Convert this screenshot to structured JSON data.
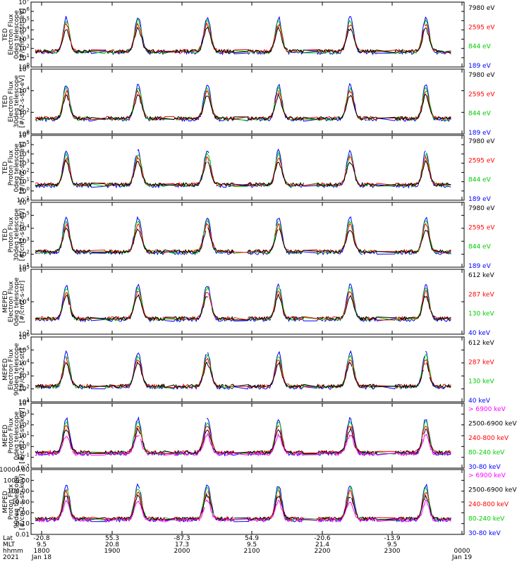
{
  "chart_data": [
    {
      "type": "line",
      "ylabel": [
        "TED",
        "Electron Flux",
        "0deg telescope",
        "[#/cm2-s-str-eV]"
      ],
      "ytick_labels": [
        "10^0",
        "10^1",
        "10^2",
        "10^3",
        "10^4",
        "10^5",
        "10^6",
        "10^7"
      ],
      "ylim_exp": [
        0,
        7
      ],
      "log_scale": true,
      "series": [
        {
          "name": "7980 eV",
          "color": "#000000"
        },
        {
          "name": "2595 eV",
          "color": "#ff0000"
        },
        {
          "name": "844 eV",
          "color": "#00cc00"
        },
        {
          "name": "189 eV",
          "color": "#0000ff"
        }
      ]
    },
    {
      "type": "line",
      "ylabel": [
        "TED",
        "Electron Flux",
        "30deg telescope",
        "[#/cm2-s-str-eV]"
      ],
      "ytick_labels": [
        "10^0",
        "10^2",
        "10^4",
        "10^6"
      ],
      "ylim_exp": [
        0,
        7
      ],
      "log_scale": true,
      "series": [
        {
          "name": "7980 eV",
          "color": "#000000"
        },
        {
          "name": "2595 eV",
          "color": "#ff0000"
        },
        {
          "name": "844 eV",
          "color": "#00cc00"
        },
        {
          "name": "189 eV",
          "color": "#0000ff"
        }
      ]
    },
    {
      "type": "line",
      "ylabel": [
        "TED",
        "Proton Flux",
        "0deg telescope",
        "[#/cm2-s-str-eV]"
      ],
      "ytick_labels": [
        "10^-1",
        "10^0",
        "10^1",
        "10^2",
        "10^3",
        "10^4",
        "10^5",
        "10^6"
      ],
      "ylim_exp": [
        -1,
        6
      ],
      "log_scale": true,
      "series": [
        {
          "name": "7980 eV",
          "color": "#000000"
        },
        {
          "name": "2595 eV",
          "color": "#ff0000"
        },
        {
          "name": "844 eV",
          "color": "#00cc00"
        },
        {
          "name": "189 eV",
          "color": "#0000ff"
        }
      ]
    },
    {
      "type": "line",
      "ylabel": [
        "TED",
        "Proton Flux",
        "30deg telescope",
        "[#/cm2-s-str-eV]"
      ],
      "ytick_labels": [
        "10^1",
        "10^2",
        "10^3",
        "10^4",
        "10^5",
        "10^6"
      ],
      "ylim_exp": [
        1,
        6
      ],
      "log_scale": true,
      "series": [
        {
          "name": "7980 eV",
          "color": "#000000"
        },
        {
          "name": "2595 eV",
          "color": "#ff0000"
        },
        {
          "name": "844 eV",
          "color": "#00cc00"
        },
        {
          "name": "189 eV",
          "color": "#0000ff"
        }
      ]
    },
    {
      "type": "line",
      "ylabel": [
        "MEPED",
        "Electron Flux",
        "0deg telescope",
        "[#/cm2-s-str]"
      ],
      "ytick_labels": [
        "10^2",
        "10^4",
        "10^5"
      ],
      "ylim_exp": [
        1,
        5
      ],
      "log_scale": true,
      "series": [
        {
          "name": "612 keV",
          "color": "#000000"
        },
        {
          "name": "287 keV",
          "color": "#ff0000"
        },
        {
          "name": "130 keV",
          "color": "#00cc00"
        },
        {
          "name": "40 keV",
          "color": "#0000ff"
        }
      ]
    },
    {
      "type": "line",
      "ylabel": [
        "MEPED",
        "Electron Flux",
        "90deg telescope",
        "[#/cm2-s-str]"
      ],
      "ytick_labels": [
        "10^1",
        "10^2",
        "10^3",
        "10^4",
        "10^5",
        "10^6"
      ],
      "ylim_exp": [
        1,
        6
      ],
      "log_scale": true,
      "series": [
        {
          "name": "612 keV",
          "color": "#000000"
        },
        {
          "name": "287 keV",
          "color": "#ff0000"
        },
        {
          "name": "130 keV",
          "color": "#00cc00"
        },
        {
          "name": "40 keV",
          "color": "#0000ff"
        }
      ]
    },
    {
      "type": "line",
      "ylabel": [
        "MEPED",
        "Proton Flux",
        "0deg telescope",
        "[#/cm2-s-str-keV]"
      ],
      "ytick_labels": [
        "10^-2",
        "10^-1",
        "10^0",
        "10^1",
        "10^2",
        "10^3",
        "10^4"
      ],
      "ylim_exp": [
        -2,
        4
      ],
      "log_scale": true,
      "series": [
        {
          "name": "> 6900 keV",
          "color": "#ff00ff"
        },
        {
          "name": "2500-6900 keV",
          "color": "#000000"
        },
        {
          "name": "240-800 keV",
          "color": "#ff0000"
        },
        {
          "name": "80-240 keV",
          "color": "#00cc00"
        },
        {
          "name": "30-80 keV",
          "color": "#0000ff"
        }
      ]
    },
    {
      "type": "line",
      "ylabel": [
        "MEPED",
        "Proton Flux",
        "90deg telescope",
        "[#/cm2-s-str-keV]"
      ],
      "ytick_labels": [
        "0.01",
        "0.10",
        "1.00",
        "10.00",
        "100.00",
        "1000.00",
        "10000.00"
      ],
      "ylim_exp": [
        -2,
        4
      ],
      "log_scale": true,
      "series": [
        {
          "name": "> 6900 keV",
          "color": "#ff00ff"
        },
        {
          "name": "2500-6900 keV",
          "color": "#000000"
        },
        {
          "name": "240-800 keV",
          "color": "#ff0000"
        },
        {
          "name": "80-240 keV",
          "color": "#00cc00"
        },
        {
          "name": "30-80 keV",
          "color": "#0000ff"
        }
      ]
    }
  ],
  "x_axis": {
    "row_labels": [
      "Lat",
      "MLT",
      "hhmm",
      "2021"
    ],
    "columns": [
      {
        "lat": "-20.8",
        "mlt": "9.5",
        "hhmm": "1800",
        "date": "Jan 18"
      },
      {
        "lat": "55.3",
        "mlt": "20.8",
        "hhmm": "1900",
        "date": ""
      },
      {
        "lat": "-87.3",
        "mlt": "17.3",
        "hhmm": "2000",
        "date": ""
      },
      {
        "lat": "54.9",
        "mlt": "9.5",
        "hhmm": "2100",
        "date": ""
      },
      {
        "lat": "-20.6",
        "mlt": "21.4",
        "hhmm": "2200",
        "date": ""
      },
      {
        "lat": "-13.9",
        "mlt": "9.5",
        "hhmm": "2300",
        "date": ""
      },
      {
        "lat": "",
        "mlt": "",
        "hhmm": "0000",
        "date": "Jan 19"
      }
    ]
  }
}
